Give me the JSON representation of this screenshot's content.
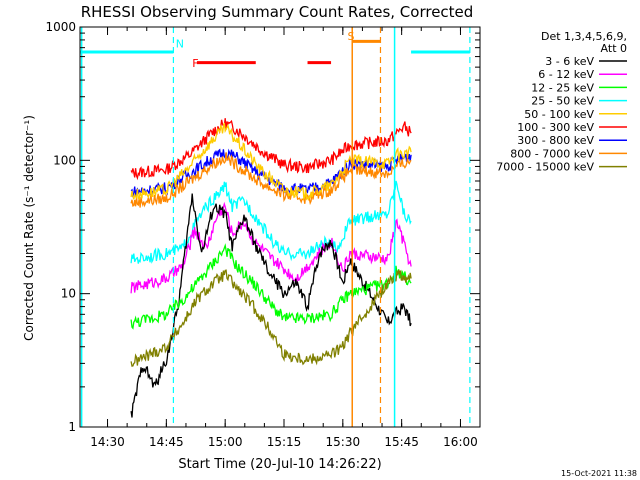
{
  "chart_data": {
    "type": "line",
    "title": "RHESSI Observing Summary Count Rates, Corrected",
    "xlabel": "Start Time (20-Jul-10 14:26:22)",
    "ylabel": "Corrected Count Rate (s⁻¹ detector⁻¹)",
    "y_scale": "log",
    "ylim": [
      1,
      1000
    ],
    "xlim_minutes": [
      14.383,
      16.083
    ],
    "x_ticks": [
      {
        "v": 14.5,
        "label": "14:30"
      },
      {
        "v": 14.75,
        "label": "14:45"
      },
      {
        "v": 15.0,
        "label": "15:00"
      },
      {
        "v": 15.25,
        "label": "15:15"
      },
      {
        "v": 15.5,
        "label": "15:30"
      },
      {
        "v": 15.75,
        "label": "15:45"
      },
      {
        "v": 16.0,
        "label": "16:00"
      }
    ],
    "y_ticks": [
      {
        "v": 1,
        "label": "1"
      },
      {
        "v": 10,
        "label": "10"
      },
      {
        "v": 100,
        "label": "100"
      },
      {
        "v": 1000,
        "label": "1000"
      }
    ],
    "legend": {
      "header": [
        "Det 1,3,4,5,6,9,",
        "Att 0"
      ],
      "placement": "right",
      "entries": [
        {
          "name": "3 - 6 keV",
          "color": "#000000"
        },
        {
          "name": "6 - 12 keV",
          "color": "#ff00ff"
        },
        {
          "name": "12 - 25 keV",
          "color": "#00ff00"
        },
        {
          "name": "25 - 50 keV",
          "color": "#00ffff"
        },
        {
          "name": "50 - 100 keV",
          "color": "#ffcc00"
        },
        {
          "name": "100 - 300 keV",
          "color": "#ff0000"
        },
        {
          "name": "300 - 800 keV",
          "color": "#0000ff"
        },
        {
          "name": "800 - 7000 keV",
          "color": "#ff8800"
        },
        {
          "name": "7000 - 15000 keV",
          "color": "#808000"
        }
      ]
    },
    "markers": [
      {
        "label": "N",
        "color": "#00ffff",
        "line_x": 14.78,
        "bar": [
          14.383,
          14.78
        ],
        "bar_y": 650,
        "label_x": 14.79,
        "label_y": 700
      },
      {
        "label": "N",
        "color": "#00ffff",
        "line_x": 16.04,
        "bar": [
          15.79,
          16.04
        ],
        "bar_y": 650
      },
      {
        "label": "F",
        "color": "#ff0000",
        "bar_y": 540,
        "label_x": 14.86,
        "label_y": 500,
        "segments": [
          [
            14.88,
            15.13
          ],
          [
            15.35,
            15.45
          ]
        ]
      },
      {
        "label": "S",
        "color": "#ff8800",
        "line_x": 15.66,
        "bar": [
          15.54,
          15.66
        ],
        "bar_y": 780,
        "label_x": 15.52,
        "label_y": 800
      }
    ],
    "solid_lines": [
      {
        "x": 14.39,
        "color": "#00ffff"
      },
      {
        "x": 15.54,
        "color": "#ff8800"
      },
      {
        "x": 15.72,
        "color": "#00ffff"
      }
    ],
    "series": [
      {
        "name": "100 - 300 keV",
        "color": "#ff0000",
        "points": [
          [
            14.6,
            80
          ],
          [
            14.75,
            85
          ],
          [
            14.85,
            110
          ],
          [
            14.95,
            165
          ],
          [
            15.0,
            190
          ],
          [
            15.05,
            170
          ],
          [
            15.15,
            120
          ],
          [
            15.25,
            92
          ],
          [
            15.35,
            88
          ],
          [
            15.45,
            100
          ],
          [
            15.53,
            130
          ],
          [
            15.69,
            140
          ],
          [
            15.73,
            160
          ],
          [
            15.76,
            180
          ],
          [
            15.79,
            160
          ]
        ]
      },
      {
        "name": "300 - 800 keV",
        "color": "#0000ff",
        "points": [
          [
            14.6,
            58
          ],
          [
            14.75,
            62
          ],
          [
            14.85,
            80
          ],
          [
            14.95,
            105
          ],
          [
            15.0,
            115
          ],
          [
            15.05,
            105
          ],
          [
            15.15,
            78
          ],
          [
            15.25,
            62
          ],
          [
            15.35,
            60
          ],
          [
            15.45,
            68
          ],
          [
            15.53,
            95
          ],
          [
            15.69,
            90
          ],
          [
            15.73,
            100
          ],
          [
            15.79,
            110
          ]
        ]
      },
      {
        "name": "800 - 7000 keV",
        "color": "#ff8800",
        "points": [
          [
            14.6,
            48
          ],
          [
            14.75,
            52
          ],
          [
            14.85,
            70
          ],
          [
            14.95,
            95
          ],
          [
            15.0,
            105
          ],
          [
            15.05,
            92
          ],
          [
            15.15,
            68
          ],
          [
            15.25,
            55
          ],
          [
            15.35,
            52
          ],
          [
            15.45,
            60
          ],
          [
            15.53,
            85
          ],
          [
            15.69,
            80
          ],
          [
            15.73,
            90
          ],
          [
            15.79,
            100
          ]
        ]
      },
      {
        "name": "50 - 100 keV",
        "color": "#ffcc00",
        "points": [
          [
            14.6,
            55
          ],
          [
            14.75,
            60
          ],
          [
            14.85,
            90
          ],
          [
            14.95,
            145
          ],
          [
            15.0,
            175
          ],
          [
            15.05,
            140
          ],
          [
            15.15,
            85
          ],
          [
            15.25,
            60
          ],
          [
            15.35,
            56
          ],
          [
            15.45,
            65
          ],
          [
            15.53,
            100
          ],
          [
            15.69,
            95
          ],
          [
            15.73,
            110
          ],
          [
            15.79,
            115
          ]
        ]
      },
      {
        "name": "25 - 50 keV",
        "color": "#00ffff",
        "points": [
          [
            14.6,
            18
          ],
          [
            14.75,
            20
          ],
          [
            14.82,
            22
          ],
          [
            14.88,
            35
          ],
          [
            14.92,
            45
          ],
          [
            14.97,
            55
          ],
          [
            15.0,
            65
          ],
          [
            15.03,
            45
          ],
          [
            15.08,
            50
          ],
          [
            15.12,
            40
          ],
          [
            15.2,
            25
          ],
          [
            15.25,
            20
          ],
          [
            15.35,
            20
          ],
          [
            15.42,
            24
          ],
          [
            15.48,
            22
          ],
          [
            15.53,
            35
          ],
          [
            15.69,
            40
          ],
          [
            15.73,
            70
          ],
          [
            15.76,
            40
          ],
          [
            15.79,
            35
          ]
        ]
      },
      {
        "name": "6 - 12 keV",
        "color": "#ff00ff",
        "points": [
          [
            14.6,
            11
          ],
          [
            14.75,
            13
          ],
          [
            14.82,
            16
          ],
          [
            14.87,
            30
          ],
          [
            14.92,
            22
          ],
          [
            14.97,
            40
          ],
          [
            15.0,
            45
          ],
          [
            15.03,
            28
          ],
          [
            15.08,
            35
          ],
          [
            15.12,
            25
          ],
          [
            15.2,
            18
          ],
          [
            15.3,
            13
          ],
          [
            15.4,
            20
          ],
          [
            15.45,
            25
          ],
          [
            15.5,
            15
          ],
          [
            15.53,
            20
          ],
          [
            15.69,
            18
          ],
          [
            15.73,
            35
          ],
          [
            15.79,
            16
          ]
        ]
      },
      {
        "name": "3 - 6 keV",
        "color": "#000000",
        "points": [
          [
            14.6,
            1.2
          ],
          [
            14.65,
            3
          ],
          [
            14.7,
            2
          ],
          [
            14.75,
            3.2
          ],
          [
            14.8,
            8
          ],
          [
            14.86,
            55
          ],
          [
            14.9,
            20
          ],
          [
            14.95,
            45
          ],
          [
            15.0,
            40
          ],
          [
            15.03,
            22
          ],
          [
            15.08,
            38
          ],
          [
            15.12,
            25
          ],
          [
            15.18,
            15
          ],
          [
            15.25,
            10
          ],
          [
            15.3,
            12
          ],
          [
            15.35,
            8
          ],
          [
            15.4,
            20
          ],
          [
            15.45,
            25
          ],
          [
            15.5,
            12
          ],
          [
            15.53,
            18
          ],
          [
            15.69,
            6
          ],
          [
            15.72,
            7
          ],
          [
            15.76,
            8
          ],
          [
            15.79,
            6
          ]
        ]
      },
      {
        "name": "12 - 25 keV",
        "color": "#00ff00",
        "points": [
          [
            14.6,
            6
          ],
          [
            14.75,
            7
          ],
          [
            14.82,
            9
          ],
          [
            14.88,
            12
          ],
          [
            14.95,
            17
          ],
          [
            15.0,
            22
          ],
          [
            15.05,
            16
          ],
          [
            15.12,
            12
          ],
          [
            15.2,
            8
          ],
          [
            15.25,
            6.5
          ],
          [
            15.35,
            6.5
          ],
          [
            15.45,
            7
          ],
          [
            15.5,
            9
          ],
          [
            15.53,
            10
          ],
          [
            15.69,
            12
          ],
          [
            15.73,
            15
          ],
          [
            15.79,
            12
          ]
        ]
      },
      {
        "name": "7000 - 15000 keV",
        "color": "#808000",
        "points": [
          [
            14.6,
            3
          ],
          [
            14.75,
            4
          ],
          [
            14.82,
            6
          ],
          [
            14.88,
            9
          ],
          [
            14.95,
            12
          ],
          [
            15.0,
            14
          ],
          [
            15.05,
            11
          ],
          [
            15.12,
            8
          ],
          [
            15.2,
            5
          ],
          [
            15.25,
            3.5
          ],
          [
            15.35,
            3.2
          ],
          [
            15.45,
            3.5
          ],
          [
            15.5,
            4
          ],
          [
            15.53,
            5
          ],
          [
            15.69,
            12
          ],
          [
            15.73,
            14
          ],
          [
            15.79,
            13
          ]
        ]
      }
    ]
  },
  "footer_timestamp": "15-Oct-2021 11:38"
}
